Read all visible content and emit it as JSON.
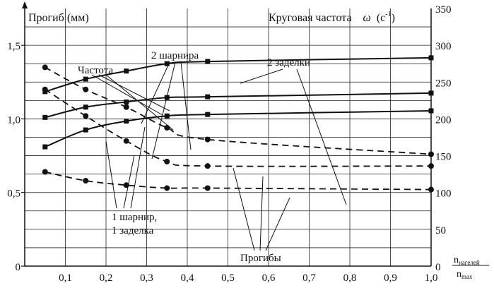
{
  "chart_data": {
    "type": "line",
    "left_axis": {
      "label": "Прогиб (мм)",
      "ylim": [
        0,
        1.75
      ],
      "tick_labels": [
        "0",
        "0,5",
        "1,0",
        "1,5"
      ],
      "tick_values": [
        0,
        0.5,
        1.0,
        1.5
      ]
    },
    "right_axis": {
      "label_main": "Круговая частота",
      "label_symbol": "ω",
      "label_unit_open": "(с",
      "label_unit_exp": "-1",
      "label_unit_close": ")",
      "ylim": [
        0,
        350
      ],
      "tick_labels": [
        "0",
        "50",
        "100",
        "150",
        "200",
        "250",
        "300",
        "350"
      ],
      "tick_values": [
        0,
        50,
        100,
        150,
        200,
        250,
        300,
        350
      ]
    },
    "x_axis": {
      "label_num": "n",
      "label_num_sub": "нагелей",
      "label_den": "n",
      "label_den_sub": "max",
      "xlim": [
        0,
        1.0
      ],
      "tick_labels": [
        "0,1",
        "0,2",
        "0,3",
        "0,4",
        "0,5",
        "0,6",
        "0,7",
        "0,8",
        "0,9",
        "1,0"
      ],
      "tick_values": [
        0.1,
        0.2,
        0.3,
        0.4,
        0.5,
        0.6,
        0.7,
        0.8,
        0.9,
        1.0
      ]
    },
    "grid": true,
    "series": [
      {
        "group": "frequency",
        "axis": "right",
        "style": "solid",
        "marker": "square",
        "x": [
          0.05,
          0.15,
          0.25,
          0.35,
          0.45,
          1.0
        ],
        "y": [
          237,
          254,
          265,
          275,
          278,
          283
        ]
      },
      {
        "group": "frequency",
        "axis": "right",
        "style": "solid",
        "marker": "square",
        "x": [
          0.05,
          0.15,
          0.25,
          0.35,
          0.45,
          1.0
        ],
        "y": [
          202,
          216,
          223,
          229,
          230,
          235
        ]
      },
      {
        "group": "frequency",
        "axis": "right",
        "style": "solid",
        "marker": "square",
        "x": [
          0.05,
          0.15,
          0.25,
          0.35,
          0.45,
          1.0
        ],
        "y": [
          162,
          185,
          197,
          204,
          206,
          211
        ]
      },
      {
        "group": "deflection",
        "axis": "left",
        "style": "dashed",
        "marker": "circle",
        "x": [
          0.05,
          0.15,
          0.25,
          0.35,
          0.45,
          1.0
        ],
        "y": [
          1.35,
          1.2,
          1.08,
          0.94,
          0.86,
          0.76
        ]
      },
      {
        "group": "deflection",
        "axis": "left",
        "style": "dashed",
        "marker": "circle",
        "x": [
          0.05,
          0.15,
          0.25,
          0.35,
          0.45,
          1.0
        ],
        "y": [
          1.2,
          1.02,
          0.85,
          0.71,
          0.68,
          0.68
        ]
      },
      {
        "group": "deflection",
        "axis": "left",
        "style": "dashed",
        "marker": "circle",
        "x": [
          0.05,
          0.15,
          0.25,
          0.35,
          0.45,
          1.0
        ],
        "y": [
          0.64,
          0.58,
          0.55,
          0.53,
          0.53,
          0.52
        ]
      }
    ],
    "annotations": {
      "frequency": "Частота",
      "two_hinges": "2 шарнира",
      "two_fixed": "2 заделки",
      "mixed_line1": "1 шарнир,",
      "mixed_line2": "1 заделка",
      "deflections": "Прогибы"
    }
  }
}
